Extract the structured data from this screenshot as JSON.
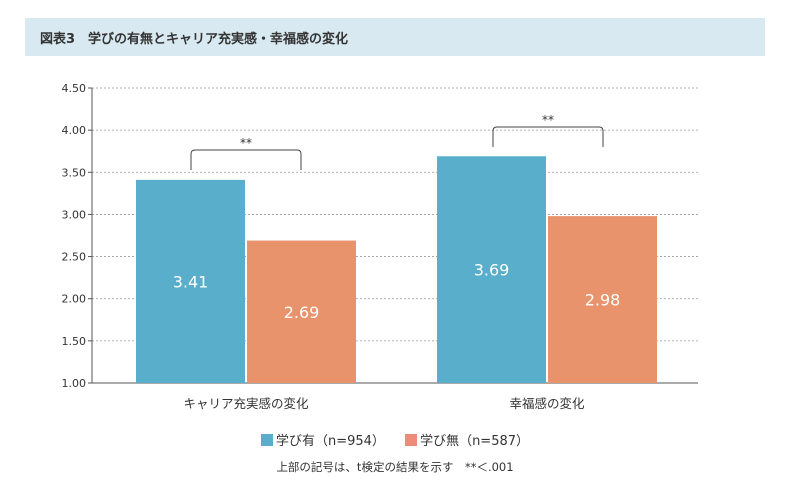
{
  "title": "図表3　学びの有無とキャリア充実感・幸福感の変化",
  "note": "上部の記号は、t検定の結果を示す　**＜.001",
  "chart_data": {
    "type": "bar",
    "categories": [
      "キャリア充実感の変化",
      "幸福感の変化"
    ],
    "series": [
      {
        "name": "学び有（n=954）",
        "values": [
          3.41,
          3.69
        ],
        "color": "#58aecb"
      },
      {
        "name": "学び無（n=587）",
        "values": [
          2.69,
          2.98
        ],
        "color": "#e8936c"
      }
    ],
    "ylim": [
      1.0,
      4.5
    ],
    "yticks": [
      "1.00",
      "1.50",
      "2.00",
      "2.50",
      "3.00",
      "3.50",
      "4.00",
      "4.50"
    ],
    "grid": "dashed horizontal",
    "legend": "bottom",
    "significance": [
      "**",
      "**"
    ]
  }
}
